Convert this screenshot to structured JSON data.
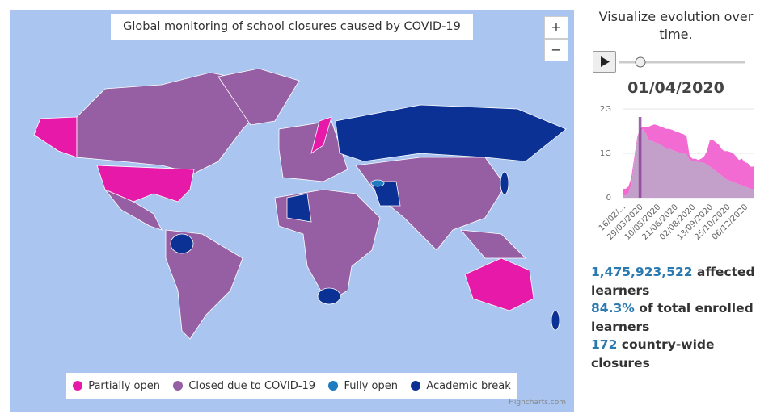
{
  "map": {
    "title": "Global monitoring of school closures caused by COVID-19",
    "zoom_in": "+",
    "zoom_out": "−",
    "legend": [
      {
        "name": "Partially open",
        "color": "#e619a8"
      },
      {
        "name": "Closed due to COVID-19",
        "color": "#965fa3"
      },
      {
        "name": "Fully open",
        "color": "#1f7cc0"
      },
      {
        "name": "Academic break",
        "color": "#0a3193"
      }
    ],
    "credit": "Highcharts.com"
  },
  "sidebar": {
    "heading": "Visualize evolution over time.",
    "date": "01/04/2020",
    "stats": [
      {
        "value": "1,475,923,522",
        "text": "affected learners"
      },
      {
        "value": "84.3%",
        "text": "of total enrolled learners"
      },
      {
        "value": "172",
        "text": "country-wide closures"
      }
    ]
  },
  "chart_data": {
    "type": "area",
    "stacked": true,
    "categories": [
      "16/02/...",
      null,
      null,
      null,
      null,
      null,
      "29/03/2020",
      null,
      null,
      null,
      null,
      null,
      "10/05/2020",
      null,
      null,
      null,
      null,
      null,
      "21/06/2020",
      null,
      null,
      null,
      null,
      null,
      "02/08/2020",
      null,
      null,
      null,
      null,
      null,
      "13/09/2020",
      null,
      null,
      null,
      null,
      null,
      "25/10/2020",
      null,
      null,
      null,
      null,
      null,
      "06/12/2020",
      null,
      null,
      null
    ],
    "series": [
      {
        "name": "Closed due to COVID-19",
        "color": "#c3a0c9",
        "values": [
          50000000,
          50000000,
          100000000,
          300000000,
          800000000,
          1300000000,
          1500000000,
          1550000000,
          1450000000,
          1300000000,
          1280000000,
          1250000000,
          1230000000,
          1200000000,
          1150000000,
          1100000000,
          1100000000,
          1080000000,
          1050000000,
          1030000000,
          1000000000,
          1000000000,
          980000000,
          850000000,
          830000000,
          830000000,
          800000000,
          800000000,
          780000000,
          750000000,
          700000000,
          650000000,
          600000000,
          550000000,
          500000000,
          450000000,
          400000000,
          380000000,
          350000000,
          330000000,
          300000000,
          280000000,
          250000000,
          230000000,
          200000000,
          200000000
        ]
      },
      {
        "name": "Partially open",
        "color": "#f26bd2",
        "values": [
          150000000,
          150000000,
          150000000,
          150000000,
          100000000,
          50000000,
          50000000,
          50000000,
          150000000,
          300000000,
          350000000,
          400000000,
          400000000,
          400000000,
          430000000,
          450000000,
          450000000,
          450000000,
          450000000,
          450000000,
          450000000,
          430000000,
          400000000,
          100000000,
          50000000,
          50000000,
          50000000,
          80000000,
          150000000,
          300000000,
          600000000,
          650000000,
          650000000,
          650000000,
          600000000,
          600000000,
          650000000,
          650000000,
          650000000,
          600000000,
          550000000,
          600000000,
          550000000,
          550000000,
          500000000,
          500000000
        ]
      }
    ],
    "ylim": [
      0,
      2000000000
    ],
    "yticks": [
      0,
      {
        "value": 1000000000,
        "label": "1G"
      },
      {
        "value": 2000000000,
        "label": "2G"
      }
    ],
    "grid": true
  }
}
